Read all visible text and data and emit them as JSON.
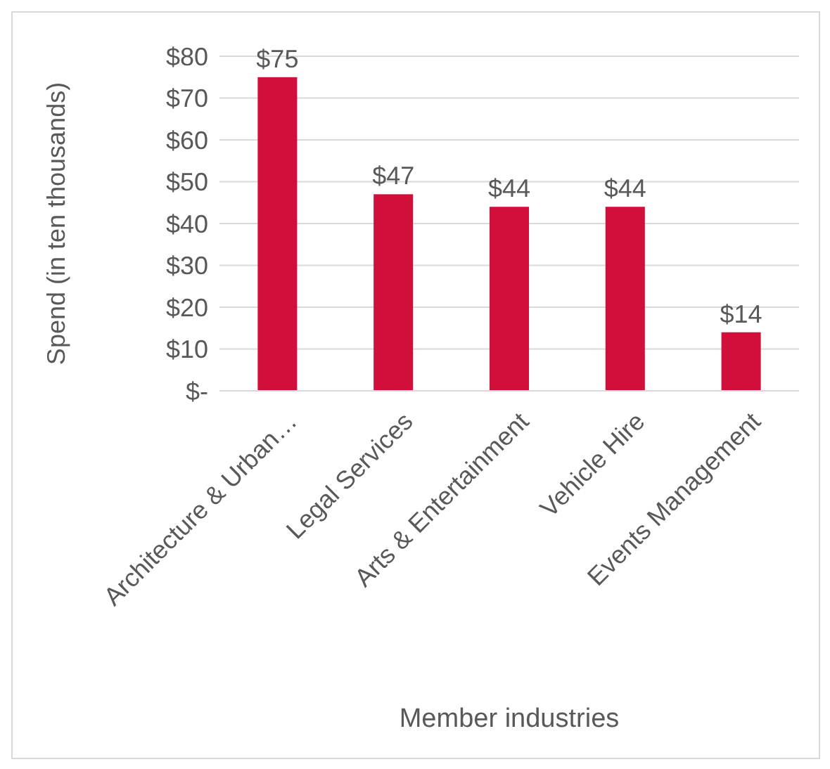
{
  "chart_data": {
    "type": "bar",
    "xlabel": "Member industries",
    "ylabel": "Spend (in ten thousands)",
    "categories": [
      "Architecture & Urban…",
      "Legal Services",
      "Arts & Entertainment",
      "Vehicle Hire",
      "Events Management"
    ],
    "values": [
      75,
      47,
      44,
      44,
      14
    ],
    "value_labels": [
      "$75",
      "$47",
      "$44",
      "$44",
      "$14"
    ],
    "color": "#d0103a",
    "ylim": [
      0,
      80
    ],
    "yticks": [
      {
        "value": 0,
        "label": "$-"
      },
      {
        "value": 10,
        "label": "$10"
      },
      {
        "value": 20,
        "label": "$20"
      },
      {
        "value": 30,
        "label": "$30"
      },
      {
        "value": 40,
        "label": "$40"
      },
      {
        "value": 50,
        "label": "$50"
      },
      {
        "value": 60,
        "label": "$60"
      },
      {
        "value": 70,
        "label": "$70"
      },
      {
        "value": 80,
        "label": "$80"
      }
    ],
    "grid": "y"
  }
}
